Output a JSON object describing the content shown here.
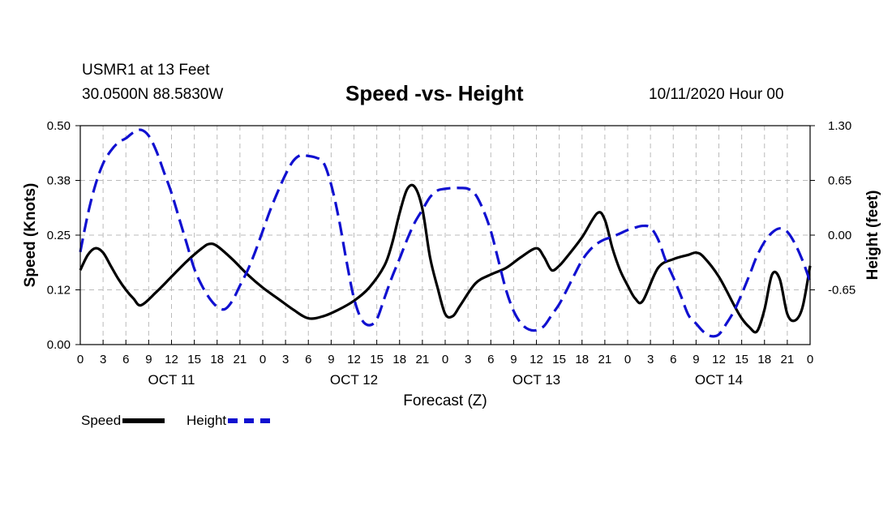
{
  "header": {
    "station": "USMR1 at 13 Feet",
    "coords": "30.0500N 88.5830W",
    "title": "Speed -vs- Height",
    "datetime": "10/11/2020 Hour 00"
  },
  "legend": {
    "speed_label": "Speed",
    "height_label": "Height"
  },
  "colors": {
    "speed": "#000000",
    "height": "#1010d0",
    "grid": "#bbbbbb"
  },
  "chart_data": {
    "type": "line",
    "title": "Speed -vs- Height",
    "xlabel": "Forecast (Z)",
    "ylabel": "Speed (Knots)",
    "y2label": "Height (feet)",
    "xlim": [
      0,
      96
    ],
    "ylim": [
      0,
      0.5
    ],
    "y2lim": [
      -1.3,
      1.3
    ],
    "x_ticks": [
      0,
      3,
      6,
      9,
      12,
      15,
      18,
      21,
      24,
      27,
      30,
      33,
      36,
      39,
      42,
      45,
      48,
      51,
      54,
      57,
      60,
      63,
      66,
      69,
      72,
      75,
      78,
      81,
      84,
      87,
      90,
      93,
      96
    ],
    "x_tick_labels": [
      "0",
      "3",
      "6",
      "9",
      "12",
      "15",
      "18",
      "21",
      "0",
      "3",
      "6",
      "9",
      "12",
      "15",
      "18",
      "21",
      "0",
      "3",
      "6",
      "9",
      "12",
      "15",
      "18",
      "21",
      "0",
      "3",
      "6",
      "9",
      "12",
      "15",
      "18",
      "21",
      "0"
    ],
    "y_ticks": [
      0.0,
      0.125,
      0.25,
      0.375,
      0.5
    ],
    "y_tick_labels": [
      "0.00",
      "0.12",
      "0.25",
      "0.38",
      "0.50"
    ],
    "y2_ticks": [
      -0.65,
      0.0,
      0.65,
      1.3
    ],
    "y2_tick_labels": [
      "-0.65",
      "0.00",
      "0.65",
      "1.30"
    ],
    "day_labels": [
      {
        "text": "OCT 11",
        "x": 12
      },
      {
        "text": "OCT 12",
        "x": 36
      },
      {
        "text": "OCT 13",
        "x": 60
      },
      {
        "text": "OCT 14",
        "x": 84
      }
    ],
    "series": [
      {
        "name": "Speed",
        "axis": "left",
        "style": "solid",
        "x": [
          0,
          1,
          2,
          3,
          4,
          5,
          6,
          7,
          8,
          10,
          12,
          14,
          16,
          17,
          18,
          20,
          22,
          24,
          26,
          28,
          30,
          32,
          34,
          36,
          38,
          40,
          41,
          42,
          43,
          44,
          45,
          46,
          47,
          48,
          49,
          50,
          52,
          54,
          56,
          58,
          60,
          61,
          62,
          63,
          64,
          66,
          68,
          69,
          70,
          71,
          72,
          73,
          74,
          76,
          78,
          80,
          81,
          82,
          84,
          86,
          87,
          88,
          89,
          90,
          91,
          92,
          93,
          94,
          95,
          96
        ],
        "values": [
          0.17,
          0.205,
          0.22,
          0.21,
          0.18,
          0.15,
          0.125,
          0.105,
          0.09,
          0.12,
          0.155,
          0.19,
          0.22,
          0.23,
          0.225,
          0.195,
          0.16,
          0.13,
          0.105,
          0.08,
          0.06,
          0.065,
          0.08,
          0.1,
          0.13,
          0.18,
          0.23,
          0.3,
          0.355,
          0.36,
          0.31,
          0.2,
          0.13,
          0.07,
          0.065,
          0.09,
          0.14,
          0.16,
          0.175,
          0.2,
          0.22,
          0.2,
          0.17,
          0.18,
          0.2,
          0.245,
          0.3,
          0.285,
          0.22,
          0.17,
          0.135,
          0.105,
          0.1,
          0.175,
          0.195,
          0.205,
          0.21,
          0.2,
          0.155,
          0.09,
          0.06,
          0.04,
          0.03,
          0.08,
          0.16,
          0.15,
          0.07,
          0.055,
          0.085,
          0.18
        ]
      },
      {
        "name": "Height",
        "axis": "right",
        "style": "dashed",
        "x": [
          0,
          1,
          2,
          3,
          4,
          5,
          6,
          7,
          8,
          9,
          10,
          11,
          12,
          13,
          14,
          15,
          16,
          17,
          18,
          19,
          20,
          21,
          22,
          23,
          24,
          25,
          26,
          27,
          28,
          29,
          30,
          31,
          32,
          33,
          34,
          35,
          36,
          37,
          38,
          39,
          40,
          41,
          42,
          43,
          44,
          45,
          46,
          47,
          48,
          49,
          50,
          51,
          52,
          53,
          54,
          55,
          56,
          57,
          58,
          59,
          60,
          61,
          62,
          63,
          64,
          65,
          66,
          67,
          68,
          69,
          70,
          71,
          72,
          73,
          74,
          75,
          76,
          77,
          78,
          79,
          80,
          81,
          82,
          83,
          84,
          85,
          86,
          87,
          88,
          89,
          90,
          91,
          92,
          93,
          94,
          95,
          96
        ],
        "values": [
          -0.2,
          0.25,
          0.6,
          0.85,
          1.0,
          1.1,
          1.15,
          1.22,
          1.25,
          1.18,
          1.0,
          0.75,
          0.5,
          0.2,
          -0.1,
          -0.4,
          -0.6,
          -0.75,
          -0.85,
          -0.88,
          -0.78,
          -0.6,
          -0.42,
          -0.2,
          0.05,
          0.3,
          0.52,
          0.72,
          0.88,
          0.95,
          0.94,
          0.92,
          0.86,
          0.6,
          0.2,
          -0.3,
          -0.75,
          -1.0,
          -1.07,
          -1.0,
          -0.75,
          -0.5,
          -0.28,
          -0.05,
          0.15,
          0.3,
          0.45,
          0.53,
          0.55,
          0.56,
          0.56,
          0.55,
          0.48,
          0.3,
          0.05,
          -0.3,
          -0.65,
          -0.9,
          -1.05,
          -1.12,
          -1.13,
          -1.08,
          -0.95,
          -0.82,
          -0.65,
          -0.47,
          -0.3,
          -0.18,
          -0.1,
          -0.05,
          -0.02,
          0.02,
          0.06,
          0.09,
          0.11,
          0.09,
          -0.05,
          -0.3,
          -0.5,
          -0.72,
          -0.95,
          -1.05,
          -1.15,
          -1.2,
          -1.18,
          -1.05,
          -0.9,
          -0.7,
          -0.48,
          -0.25,
          -0.08,
          0.03,
          0.08,
          0.04,
          -0.1,
          -0.3,
          -0.55
        ]
      }
    ]
  }
}
